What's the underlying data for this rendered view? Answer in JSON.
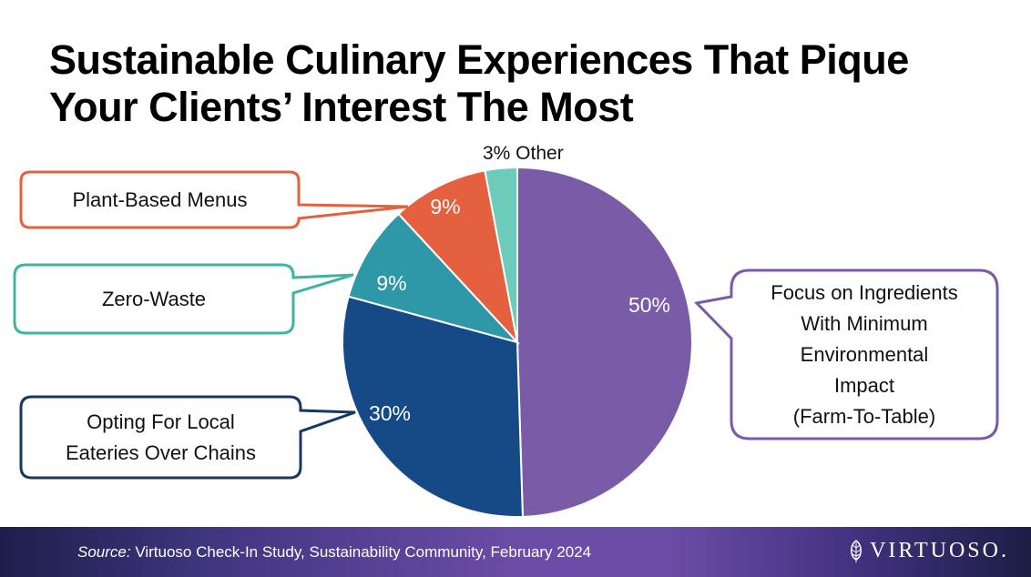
{
  "title_line1": "Sustainable Culinary Experiences That Pique",
  "title_line2": "Your Clients’ Interest The Most",
  "chart_data": {
    "type": "pie",
    "title": "Sustainable Culinary Experiences That Pique Your Clients’ Interest The Most",
    "slices": [
      {
        "label": "Focus on Ingredients With Minimum Environmental Impact (Farm-To-Table)",
        "value": 50,
        "value_label": "50%",
        "color": "#7a5ba8"
      },
      {
        "label": "Opting For Local Eateries Over Chains",
        "value": 30,
        "value_label": "30%",
        "color": "#154a86"
      },
      {
        "label": "Zero-Waste",
        "value": 9,
        "value_label": "9%",
        "color": "#2e98a8"
      },
      {
        "label": "Plant-Based Menus",
        "value": 9,
        "value_label": "9%",
        "color": "#e4603f"
      },
      {
        "label": "Other",
        "value": 3,
        "value_label": "3%",
        "color": "#6ccbba"
      }
    ]
  },
  "callouts": {
    "farm": [
      "Focus on Ingredients",
      "With Minimum",
      "Environmental",
      "Impact",
      "(Farm-To-Table)"
    ],
    "local": [
      "Opting For Local",
      "Eateries Over Chains"
    ],
    "zero": "Zero-Waste",
    "plant": "Plant-Based Menus",
    "other": "3% Other"
  },
  "footer": {
    "source_label": "Source:",
    "source_text": " Virtuoso Check-In Study, Sustainability Community, February 2024",
    "logo": "VIRTUOSO."
  }
}
